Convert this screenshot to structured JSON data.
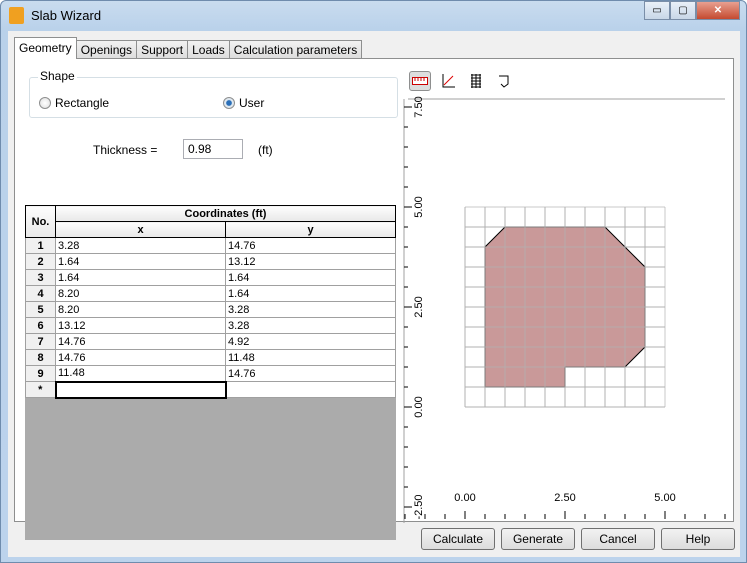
{
  "window": {
    "title": "Slab Wizard",
    "minimize": "▭",
    "maximize": "▢",
    "close": "✕"
  },
  "tabs": [
    {
      "label": "Geometry",
      "active": true
    },
    {
      "label": "Openings"
    },
    {
      "label": "Support"
    },
    {
      "label": "Loads"
    },
    {
      "label": "Calculation parameters"
    }
  ],
  "shape": {
    "label": "Shape",
    "options": [
      "Rectangle",
      "User"
    ],
    "selected": "User"
  },
  "thickness": {
    "label": "Thickness =",
    "value": "0.98",
    "unit": "(ft)"
  },
  "table": {
    "no_header": "No.",
    "group_header": "Coordinates (ft)",
    "x_header": "x",
    "y_header": "y",
    "rows": [
      [
        "1",
        "3.28",
        "14.76"
      ],
      [
        "2",
        "1.64",
        "13.12"
      ],
      [
        "3",
        "1.64",
        "1.64"
      ],
      [
        "4",
        "8.20",
        "1.64"
      ],
      [
        "5",
        "8.20",
        "3.28"
      ],
      [
        "6",
        "13.12",
        "3.28"
      ],
      [
        "7",
        "14.76",
        "4.92"
      ],
      [
        "8",
        "14.76",
        "11.48"
      ],
      [
        "9",
        "11.48",
        "14.76"
      ]
    ],
    "new_row_marker": "*"
  },
  "toolbar": [
    "ruler-icon",
    "axes-icon",
    "grid-icon",
    "shape-icon"
  ],
  "preview": {
    "x_ticks": [
      "0.00",
      "2.50",
      "5.00"
    ],
    "y_ticks": [
      "7.50",
      "5.00",
      "2.50",
      "0.00",
      "-2.50"
    ],
    "fill_color": "#c99999"
  },
  "buttons": {
    "calculate": "Calculate",
    "generate": "Generate",
    "cancel": "Cancel",
    "help": "Help"
  }
}
